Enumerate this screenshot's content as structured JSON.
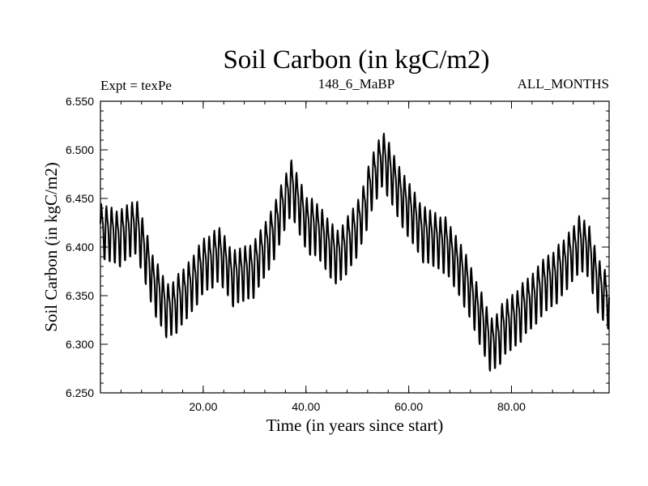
{
  "chart_data": {
    "type": "line",
    "title": "Soil Carbon (in kgC/m2)",
    "subtitle_left": "Expt = texPe",
    "subtitle_center": "148_6_MaBP",
    "subtitle_right": "ALL_MONTHS",
    "xlabel": "Time (in years since start)",
    "ylabel": "Soil Carbon (in kgC/m2)",
    "xlim": [
      0.0,
      99.0
    ],
    "ylim": [
      6.25,
      6.55
    ],
    "xticks": [
      20,
      40,
      60,
      80
    ],
    "xtick_labels": [
      "20.00",
      "40.00",
      "60.00",
      "80.00"
    ],
    "yticks": [
      6.25,
      6.3,
      6.35,
      6.4,
      6.45,
      6.5,
      6.55
    ],
    "ytick_labels": [
      "6.250",
      "6.300",
      "6.350",
      "6.400",
      "6.450",
      "6.500",
      "6.550"
    ],
    "series": [
      {
        "name": "Soil Carbon",
        "seasonal_amplitude": 0.025,
        "samples_per_year": 12,
        "annual_mean_trend": {
          "x": [
            0,
            4,
            7,
            10,
            13,
            16,
            20,
            23,
            26,
            30,
            34,
            37,
            40,
            43,
            46,
            50,
            53,
            55,
            57,
            60,
            63,
            67,
            70,
            74,
            76,
            79,
            82,
            86,
            90,
            93,
            95,
            97,
            99
          ],
          "y": [
            6.418,
            6.412,
            6.425,
            6.37,
            6.335,
            6.35,
            6.382,
            6.395,
            6.37,
            6.38,
            6.42,
            6.465,
            6.428,
            6.415,
            6.39,
            6.42,
            6.47,
            6.495,
            6.47,
            6.44,
            6.415,
            6.405,
            6.38,
            6.33,
            6.3,
            6.32,
            6.335,
            6.36,
            6.38,
            6.405,
            6.4,
            6.36,
            6.345
          ]
        }
      }
    ]
  }
}
